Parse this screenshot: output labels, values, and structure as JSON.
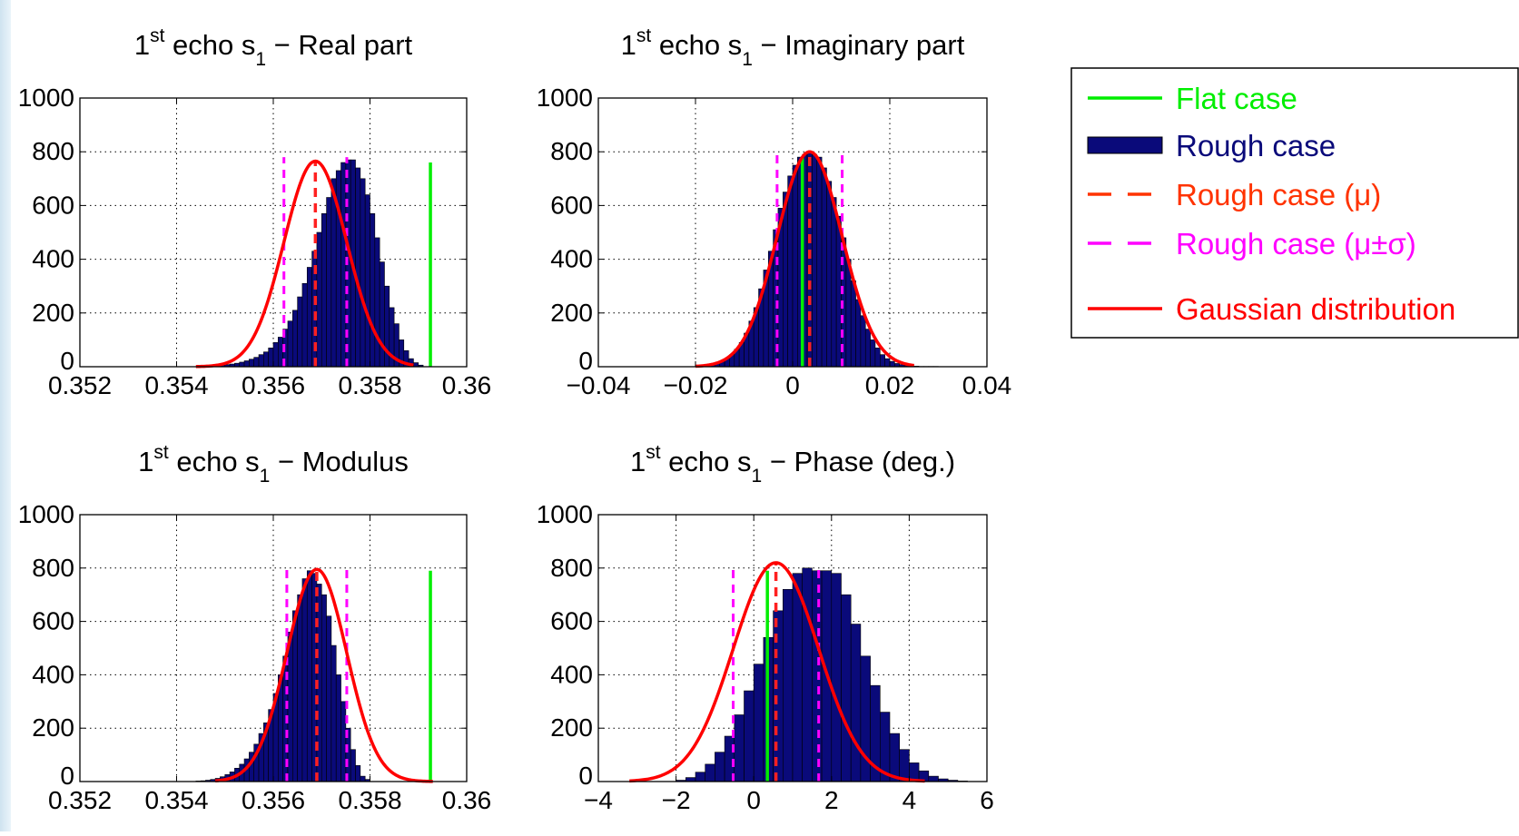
{
  "colors": {
    "background": "#ffffff",
    "axes": "#000000",
    "grid": "#000000",
    "flat": "#00ee00",
    "bars": "#0a0a7a",
    "bar_edge": "#000000",
    "mean": "#ff2020",
    "sigma": "#ff00ff",
    "gauss": "#ff0000",
    "legend_mean": "#ff3300"
  },
  "legend": {
    "entries": [
      {
        "id": "flat",
        "label": "Flat case",
        "style": "solid",
        "color": "#00ee00"
      },
      {
        "id": "rough",
        "label": "Rough case",
        "style": "bar",
        "color": "#0a0a7a"
      },
      {
        "id": "mean",
        "label": "Rough case (μ)",
        "style": "dashed",
        "color": "#ff3300"
      },
      {
        "id": "sigma",
        "label": "Rough case (μ±σ)",
        "style": "dashed",
        "color": "#ff00ff"
      },
      {
        "id": "gauss",
        "label": "Gaussian distribution",
        "style": "solid",
        "color": "#ff0000"
      }
    ],
    "placement": "right"
  },
  "chart_data": [
    {
      "type": "bar",
      "title_sup": "st",
      "title_pre": "1",
      "title_mid": " echo s",
      "title_sub": "1",
      "title_post": " − Real part",
      "xlim": [
        0.352,
        0.36
      ],
      "ylim": [
        0,
        1000
      ],
      "xticks": [
        0.352,
        0.354,
        0.356,
        0.358,
        0.36
      ],
      "xticklabels": [
        "0.352",
        "0.354",
        "0.356",
        "0.358",
        "0.36"
      ],
      "yticks": [
        0,
        200,
        400,
        600,
        800,
        1000
      ],
      "yticklabels": [
        "0",
        "200",
        "400",
        "600",
        "800",
        "1000"
      ],
      "grid": true,
      "flat_value": 0.35925,
      "flat_height": 760,
      "mu": 0.35687,
      "sigma": 0.00065,
      "sigma_height": 780,
      "gauss_peak": 765,
      "gauss_range": [
        0.3544,
        0.3589
      ],
      "bins": {
        "start": 0.3529,
        "width": 0.0001,
        "counts": [
          0,
          0,
          0,
          0,
          0,
          0,
          0,
          0,
          0,
          0,
          0,
          0,
          0,
          0,
          0,
          0,
          2,
          3,
          4,
          5,
          6,
          8,
          10,
          13,
          17,
          22,
          28,
          35,
          45,
          55,
          70,
          90,
          110,
          140,
          170,
          210,
          260,
          310,
          370,
          430,
          500,
          570,
          630,
          700,
          730,
          760,
          770,
          770,
          740,
          700,
          640,
          570,
          480,
          390,
          300,
          220,
          160,
          100,
          60,
          30,
          15,
          6
        ]
      }
    },
    {
      "type": "bar",
      "title_sup": "st",
      "title_pre": "1",
      "title_mid": " echo s",
      "title_sub": "1",
      "title_post": " − Imaginary part",
      "xlim": [
        -0.04,
        0.04
      ],
      "ylim": [
        0,
        1000
      ],
      "xticks": [
        -0.04,
        -0.02,
        0,
        0.02,
        0.04
      ],
      "xticklabels": [
        "−0.04",
        "−0.02",
        "0",
        "0.02",
        "0.04"
      ],
      "yticks": [
        0,
        200,
        400,
        600,
        800,
        1000
      ],
      "yticklabels": [
        "0",
        "200",
        "400",
        "600",
        "800",
        "1000"
      ],
      "grid": true,
      "flat_value": 0.002,
      "flat_height": 780,
      "mu": 0.0035,
      "sigma": 0.0067,
      "sigma_height": 800,
      "gauss_peak": 800,
      "gauss_range": [
        -0.02,
        0.025
      ],
      "bins": {
        "start": -0.02,
        "width": 0.001,
        "counts": [
          2,
          3,
          5,
          8,
          12,
          20,
          30,
          45,
          65,
          90,
          125,
          170,
          220,
          290,
          360,
          430,
          510,
          590,
          650,
          710,
          750,
          780,
          790,
          800,
          790,
          780,
          740,
          690,
          630,
          560,
          480,
          400,
          320,
          250,
          190,
          140,
          100,
          70,
          45,
          30,
          20,
          12,
          8,
          5,
          3,
          2,
          1,
          1,
          1,
          1
        ]
      }
    },
    {
      "type": "bar",
      "title_sup": "st",
      "title_pre": "1",
      "title_mid": " echo s",
      "title_sub": "1",
      "title_post": " − Modulus",
      "xlim": [
        0.352,
        0.36
      ],
      "ylim": [
        0,
        1000
      ],
      "xticks": [
        0.352,
        0.354,
        0.356,
        0.358,
        0.36
      ],
      "xticklabels": [
        "0.352",
        "0.354",
        "0.356",
        "0.358",
        "0.36"
      ],
      "yticks": [
        0,
        200,
        400,
        600,
        800,
        1000
      ],
      "yticklabels": [
        "0",
        "200",
        "400",
        "600",
        "800",
        "1000"
      ],
      "grid": true,
      "flat_value": 0.35925,
      "flat_height": 790,
      "mu": 0.3569,
      "sigma": 0.00062,
      "sigma_height": 800,
      "gauss_peak": 795,
      "gauss_range": [
        0.3548,
        0.3593
      ],
      "bins": {
        "start": 0.3544,
        "width": 0.0001,
        "counts": [
          2,
          3,
          5,
          8,
          12,
          18,
          26,
          36,
          50,
          65,
          85,
          110,
          140,
          180,
          220,
          270,
          330,
          400,
          470,
          560,
          640,
          700,
          760,
          790,
          780,
          740,
          700,
          620,
          510,
          400,
          300,
          200,
          120,
          60,
          20,
          8
        ]
      }
    },
    {
      "type": "bar",
      "title_sup": "st",
      "title_pre": "1",
      "title_mid": " echo s",
      "title_sub": "1",
      "title_post": " − Phase (deg.)",
      "xlim": [
        -4,
        6
      ],
      "ylim": [
        0,
        1000
      ],
      "xticks": [
        -4,
        -2,
        0,
        2,
        4,
        6
      ],
      "xticklabels": [
        "−4",
        "−2",
        "0",
        "2",
        "4",
        "6"
      ],
      "yticks": [
        0,
        200,
        400,
        600,
        800,
        1000
      ],
      "yticklabels": [
        "0",
        "200",
        "400",
        "600",
        "800",
        "1000"
      ],
      "grid": true,
      "flat_value": 0.35,
      "flat_height": 790,
      "mu": 0.57,
      "sigma": 1.1,
      "sigma_height": 800,
      "gauss_peak": 820,
      "gauss_range": [
        -3.2,
        4.4
      ],
      "bins": {
        "start": -2.0,
        "width": 0.25,
        "counts": [
          5,
          15,
          35,
          65,
          110,
          170,
          250,
          340,
          440,
          540,
          640,
          720,
          780,
          800,
          790,
          790,
          780,
          700,
          590,
          470,
          360,
          260,
          180,
          120,
          70,
          40,
          20,
          10,
          5,
          2
        ]
      }
    }
  ]
}
